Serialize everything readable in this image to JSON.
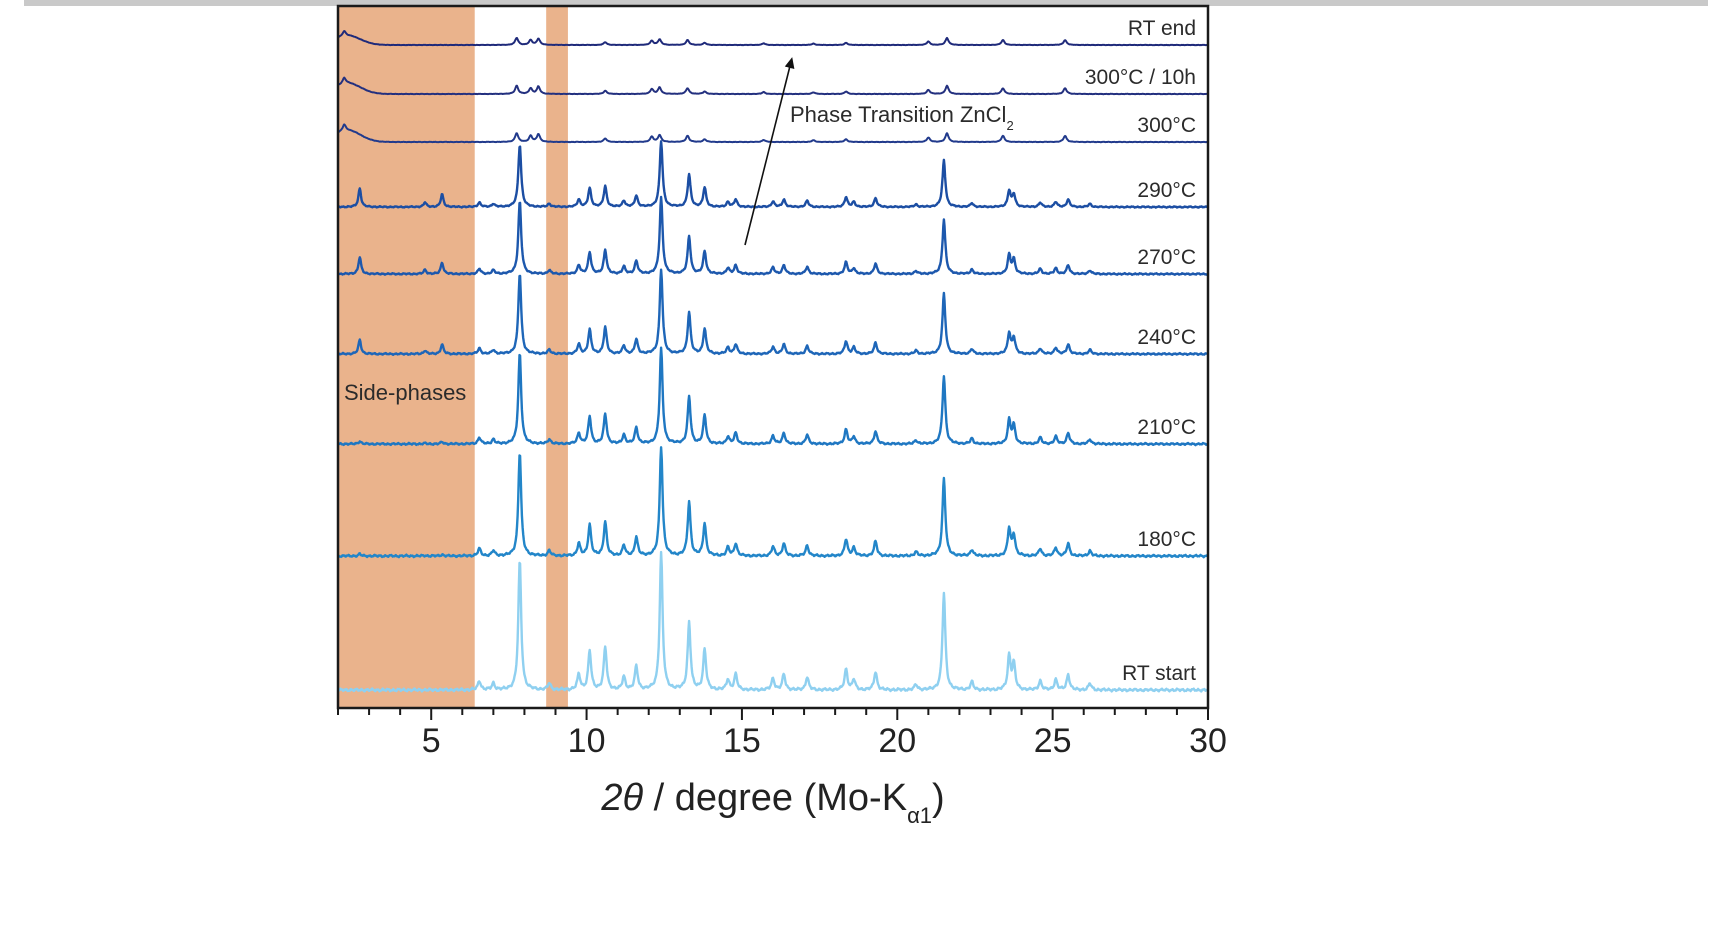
{
  "chart_data": {
    "type": "line",
    "xlabel": "2θ / degree (Mo-Kα1)",
    "xlabel_parts": {
      "theta": "2θ",
      "mid": " / degree (Mo-K",
      "sub": "α1",
      "end": ")"
    },
    "ylabel": "",
    "xlim": [
      2,
      30
    ],
    "xticks": [
      5,
      10,
      15,
      20,
      25,
      30
    ],
    "grid": false,
    "legend": "none",
    "peaks": [
      {
        "x": 6.55,
        "h": 0.07
      },
      {
        "x": 7.0,
        "h": 0.05
      },
      {
        "x": 7.85,
        "h": 1.0
      },
      {
        "x": 8.8,
        "h": 0.05
      },
      {
        "x": 9.75,
        "h": 0.12
      },
      {
        "x": 10.1,
        "h": 0.3
      },
      {
        "x": 10.6,
        "h": 0.33
      },
      {
        "x": 11.2,
        "h": 0.1
      },
      {
        "x": 11.6,
        "h": 0.18
      },
      {
        "x": 12.4,
        "h": 1.05
      },
      {
        "x": 13.3,
        "h": 0.52
      },
      {
        "x": 13.8,
        "h": 0.31
      },
      {
        "x": 14.55,
        "h": 0.08
      },
      {
        "x": 14.8,
        "h": 0.12
      },
      {
        "x": 16.0,
        "h": 0.09
      },
      {
        "x": 16.35,
        "h": 0.12
      },
      {
        "x": 17.1,
        "h": 0.1
      },
      {
        "x": 18.35,
        "h": 0.16
      },
      {
        "x": 18.6,
        "h": 0.08
      },
      {
        "x": 19.3,
        "h": 0.14
      },
      {
        "x": 20.6,
        "h": 0.04
      },
      {
        "x": 21.5,
        "h": 0.75
      },
      {
        "x": 22.4,
        "h": 0.06
      },
      {
        "x": 23.6,
        "h": 0.26
      },
      {
        "x": 23.75,
        "h": 0.2
      },
      {
        "x": 24.6,
        "h": 0.07
      },
      {
        "x": 25.1,
        "h": 0.08
      },
      {
        "x": 25.5,
        "h": 0.12
      },
      {
        "x": 26.2,
        "h": 0.05
      }
    ],
    "side_phase_peaks": [
      {
        "x": 2.7,
        "h": 0.32
      },
      {
        "x": 4.8,
        "h": 0.08
      },
      {
        "x": 5.35,
        "h": 0.22
      }
    ],
    "series": [
      {
        "name": "RT end",
        "color": "#1f2a7a",
        "scale": 0.12,
        "phase": "zncl2"
      },
      {
        "name": "300°C / 10h",
        "color": "#23307f",
        "scale": 0.14,
        "phase": "zncl2"
      },
      {
        "name": "300°C",
        "color": "#213a8c",
        "scale": 0.15,
        "phase": "zncl2"
      },
      {
        "name": "290°C",
        "color": "#1c4ea3",
        "scale": 0.48,
        "phase": "main",
        "side": 1.0
      },
      {
        "name": "270°C",
        "color": "#1d58ad",
        "scale": 0.56,
        "phase": "main",
        "side": 0.9
      },
      {
        "name": "240°C",
        "color": "#1e66b8",
        "scale": 0.62,
        "phase": "main",
        "side": 0.75
      },
      {
        "name": "210°C",
        "color": "#1f77c2",
        "scale": 0.7,
        "phase": "main",
        "side": 0.15
      },
      {
        "name": "180°C",
        "color": "#2386c9",
        "scale": 0.8,
        "phase": "main",
        "side": 0.1
      },
      {
        "name": "RT start",
        "color": "#8fd0f0",
        "scale": 1.0,
        "phase": "main",
        "side": 0.0
      }
    ],
    "zncl2_peaks": [
      {
        "x": 2.2,
        "h": 0.35
      },
      {
        "x": 7.75,
        "h": 0.5
      },
      {
        "x": 8.2,
        "h": 0.35
      },
      {
        "x": 8.45,
        "h": 0.45
      },
      {
        "x": 10.6,
        "h": 0.2
      },
      {
        "x": 12.1,
        "h": 0.3
      },
      {
        "x": 12.35,
        "h": 0.4
      },
      {
        "x": 13.25,
        "h": 0.35
      },
      {
        "x": 13.8,
        "h": 0.15
      },
      {
        "x": 15.7,
        "h": 0.12
      },
      {
        "x": 17.3,
        "h": 0.1
      },
      {
        "x": 18.35,
        "h": 0.15
      },
      {
        "x": 21.0,
        "h": 0.25
      },
      {
        "x": 21.6,
        "h": 0.5
      },
      {
        "x": 23.4,
        "h": 0.35
      },
      {
        "x": 25.4,
        "h": 0.35
      }
    ],
    "shaded_regions": [
      {
        "x0": 2.0,
        "x1": 6.4,
        "label": "Side-phases"
      },
      {
        "x0": 8.7,
        "x1": 9.4,
        "label": ""
      }
    ],
    "annotations": {
      "phase_transition_main": "Phase Transition ZnCl",
      "phase_transition_sub": "2",
      "arrow_from": {
        "x": 15.1,
        "series": "270°C"
      },
      "arrow_to": {
        "x": 16.7,
        "series": "RT end"
      }
    },
    "colors": {
      "shade": "#eab38c",
      "axis": "#1a1a1a",
      "arrow": "#111111"
    }
  }
}
